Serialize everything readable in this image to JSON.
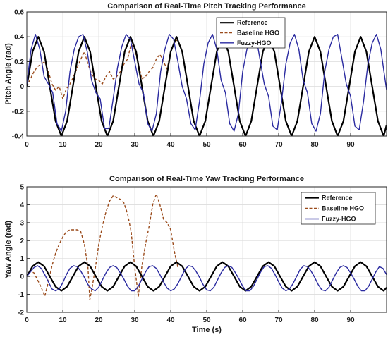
{
  "chart_data": [
    {
      "type": "line",
      "title": "Comparison of Real-Time Pitch Tracking Performance",
      "xlabel": "",
      "ylabel": "Pitch Angle (rad)",
      "xlim": [
        0,
        100
      ],
      "ylim": [
        -0.4,
        0.6
      ],
      "xticks": [
        "0",
        "10",
        "20",
        "30",
        "40",
        "50",
        "60",
        "70",
        "80",
        "90"
      ],
      "yticks": [
        "-0.4",
        "-0.2",
        "0",
        "0.2",
        "0.4",
        "0.6"
      ],
      "grid": true,
      "legend_position": "top-right",
      "series": [
        {
          "name": "Reference",
          "color": "#000000",
          "style": "solid",
          "x": [
            0,
            1.6,
            3.2,
            4.8,
            6.4,
            8,
            9.6,
            11.2,
            12.8,
            14.4,
            16,
            17.6,
            19.2,
            20.8,
            22.4,
            24,
            25.6,
            27.2,
            28.8,
            30.4,
            32,
            33.6,
            35.2,
            36.8,
            38.4,
            40,
            41.6,
            43.2,
            44.8,
            46.4,
            48,
            49.6,
            51.2,
            52.8,
            54.4,
            56,
            57.6,
            59.2,
            60.8,
            62.4,
            64,
            65.6,
            67.2,
            68.8,
            70.4,
            72,
            73.6,
            75.2,
            76.8,
            78.4,
            80,
            81.6,
            83.2,
            84.8,
            86.4,
            88,
            89.6,
            91.2,
            92.8,
            94.4,
            96,
            97.6,
            99.2,
            100
          ],
          "y": [
            0,
            0.28,
            0.4,
            0.28,
            0,
            -0.28,
            -0.4,
            -0.28,
            0,
            0.28,
            0.4,
            0.28,
            0,
            -0.28,
            -0.4,
            -0.28,
            0,
            0.28,
            0.4,
            0.28,
            0,
            -0.28,
            -0.4,
            -0.28,
            0,
            0.28,
            0.4,
            0.28,
            0,
            -0.28,
            -0.4,
            -0.28,
            0,
            0.28,
            0.4,
            0.28,
            0,
            -0.28,
            -0.4,
            -0.28,
            0,
            0.28,
            0.4,
            0.28,
            0,
            -0.28,
            -0.4,
            -0.28,
            0,
            0.28,
            0.4,
            0.28,
            0,
            -0.28,
            -0.4,
            -0.28,
            0,
            0.28,
            0.4,
            0.28,
            0,
            -0.28,
            -0.4,
            -0.31
          ]
        },
        {
          "name": "Baseline HGO",
          "color": "#9a4a1a",
          "style": "dashed",
          "x": [
            0,
            1,
            2,
            3,
            4,
            5,
            6,
            7,
            8,
            9,
            10,
            11,
            12,
            13,
            14,
            15,
            16,
            17,
            18,
            19,
            20,
            21,
            22,
            23,
            24,
            25,
            26,
            27,
            28,
            29,
            30,
            31,
            32,
            33,
            34,
            35,
            36,
            37,
            38,
            39,
            40,
            41,
            42
          ],
          "y": [
            0,
            0.06,
            0.12,
            0.16,
            0.18,
            0.2,
            0.12,
            0.02,
            -0.03,
            0,
            -0.1,
            -0.02,
            0.02,
            0.08,
            0.15,
            0.22,
            0.28,
            0.18,
            0.1,
            0.06,
            0.05,
            0.02,
            0.08,
            0.12,
            0.06,
            0.08,
            0.12,
            0.18,
            0.22,
            0.34,
            0.3,
            0.18,
            0.06,
            0.08,
            0.12,
            0.15,
            0.22,
            0.26,
            0.2,
            0.14,
            0.28,
            0.35,
            0.38
          ]
        },
        {
          "name": "Fuzzy-HGO",
          "color": "#2a2aa0",
          "style": "solid",
          "x": [
            0,
            1.2,
            2.4,
            3.6,
            4.8,
            6,
            7.2,
            8.4,
            9.6,
            10.8,
            12,
            13.2,
            14.4,
            15.6,
            16.8,
            18,
            19.2,
            20.4,
            21.6,
            22.8,
            24,
            25.2,
            26.4,
            27.6,
            28.8,
            30,
            31.2,
            32.4,
            33.6,
            34.8,
            36,
            37.2,
            38.4,
            39.6,
            40.8,
            42,
            43.2,
            44.4,
            45.6,
            46.8,
            48,
            49.2,
            50.4,
            51.6,
            52.8,
            54,
            55.2,
            56.4,
            57.6,
            58.8,
            60,
            61.2,
            62.4,
            63.6,
            64.8,
            66,
            67.2,
            68.4,
            69.6,
            70.8,
            72,
            73.2,
            74.4,
            75.6,
            76.8,
            78,
            79.2,
            80.4,
            81.6,
            82.8,
            84,
            85.2,
            86.4,
            87.6,
            88.8,
            90,
            91.2,
            92.4,
            93.6,
            94.8,
            96,
            97.2,
            98.4,
            99.6,
            100
          ],
          "y": [
            0.02,
            0.3,
            0.42,
            0.3,
            0.08,
            0.02,
            -0.05,
            -0.3,
            -0.36,
            -0.2,
            0.12,
            0.3,
            0.4,
            0.42,
            0.28,
            0.05,
            -0.05,
            -0.1,
            -0.34,
            -0.34,
            -0.1,
            0.15,
            0.32,
            0.42,
            0.38,
            0.2,
            0.02,
            -0.05,
            -0.3,
            -0.36,
            -0.22,
            0.12,
            0.3,
            0.42,
            0.38,
            0.2,
            0,
            -0.1,
            -0.3,
            -0.35,
            -0.12,
            0.18,
            0.35,
            0.42,
            0.3,
            0.05,
            -0.05,
            -0.3,
            -0.36,
            -0.22,
            0.12,
            0.3,
            0.4,
            0.42,
            0.22,
            0.02,
            -0.08,
            -0.32,
            -0.35,
            -0.12,
            0.18,
            0.35,
            0.42,
            0.3,
            0.05,
            -0.05,
            -0.3,
            -0.36,
            -0.22,
            0.12,
            0.3,
            0.4,
            0.42,
            0.22,
            0.02,
            -0.08,
            -0.32,
            -0.35,
            -0.12,
            0.18,
            0.35,
            0.42,
            0.3,
            0.05,
            -0.03
          ]
        }
      ]
    },
    {
      "type": "line",
      "title": "Comparison of Real-Time Yaw Tracking Performance",
      "xlabel": "Time (s)",
      "ylabel": "Yaw Angle (rad)",
      "xlim": [
        0,
        100
      ],
      "ylim": [
        -2,
        5
      ],
      "xticks": [
        "0",
        "10",
        "20",
        "30",
        "40",
        "50",
        "60",
        "70",
        "80",
        "90"
      ],
      "yticks": [
        "-2",
        "-1",
        "0",
        "1",
        "2",
        "3",
        "4",
        "5"
      ],
      "grid": true,
      "legend_position": "top-right",
      "series": [
        {
          "name": "Reference",
          "color": "#000000",
          "style": "solid",
          "x": [
            0,
            1.6,
            3.2,
            4.8,
            6.4,
            8,
            9.6,
            11.2,
            12.8,
            14.4,
            16,
            17.6,
            19.2,
            20.8,
            22.4,
            24,
            25.6,
            27.2,
            28.8,
            30.4,
            32,
            33.6,
            35.2,
            36.8,
            38.4,
            40,
            41.6,
            43.2,
            44.8,
            46.4,
            48,
            49.6,
            51.2,
            52.8,
            54.4,
            56,
            57.6,
            59.2,
            60.8,
            62.4,
            64,
            65.6,
            67.2,
            68.8,
            70.4,
            72,
            73.6,
            75.2,
            76.8,
            78.4,
            80,
            81.6,
            83.2,
            84.8,
            86.4,
            88,
            89.6,
            91.2,
            92.8,
            94.4,
            96,
            97.6,
            99.2,
            100
          ],
          "y": [
            0,
            0.57,
            0.8,
            0.57,
            0,
            -0.57,
            -0.8,
            -0.57,
            0,
            0.57,
            0.8,
            0.57,
            0,
            -0.57,
            -0.8,
            -0.57,
            0,
            0.57,
            0.8,
            0.57,
            0,
            -0.57,
            -0.8,
            -0.57,
            0,
            0.57,
            0.8,
            0.57,
            0,
            -0.57,
            -0.8,
            -0.57,
            0,
            0.57,
            0.8,
            0.57,
            0,
            -0.57,
            -0.8,
            -0.57,
            0,
            0.57,
            0.8,
            0.57,
            0,
            -0.57,
            -0.8,
            -0.57,
            0,
            0.57,
            0.8,
            0.57,
            0,
            -0.57,
            -0.8,
            -0.57,
            0,
            0.57,
            0.8,
            0.57,
            0,
            -0.57,
            -0.8,
            -0.62
          ]
        },
        {
          "name": "Baseline HGO",
          "color": "#9a4a1a",
          "style": "dashed",
          "x": [
            0,
            1,
            2,
            3,
            4,
            5,
            6,
            7,
            8,
            9,
            10,
            11,
            12,
            13,
            14,
            15,
            16,
            17,
            17.5,
            18,
            19,
            20,
            21,
            22,
            23,
            24,
            25,
            26,
            27,
            28,
            29,
            30,
            31,
            32,
            33,
            34,
            35,
            36,
            37,
            38,
            39,
            40,
            41,
            42
          ],
          "y": [
            0,
            0.3,
            0.2,
            -0.2,
            -0.6,
            -1.1,
            -0.3,
            0.6,
            1.3,
            1.8,
            2.2,
            2.5,
            2.6,
            2.6,
            2.6,
            2.5,
            1.8,
            0.5,
            -1.3,
            -0.8,
            0.4,
            1.8,
            2.8,
            3.6,
            4.2,
            4.5,
            4.4,
            4.3,
            4.1,
            3.5,
            2.5,
            0.5,
            -1.1,
            0.6,
            1.8,
            2.8,
            4.0,
            4.6,
            4.0,
            3.2,
            3.0,
            2.6,
            1.4,
            0.5
          ]
        },
        {
          "name": "Fuzzy-HGO",
          "color": "#2a2aa0",
          "style": "solid",
          "x": [
            0,
            1,
            2,
            3,
            4,
            5,
            6,
            7,
            8,
            9,
            10,
            11,
            12,
            13,
            14,
            15,
            16,
            17,
            18,
            19,
            20,
            21,
            22,
            23,
            24,
            25,
            26,
            27,
            28,
            29,
            30,
            31,
            32,
            33,
            34,
            35,
            36,
            37,
            38,
            39,
            40,
            41,
            42,
            43,
            44,
            45,
            46,
            47,
            48,
            49,
            50,
            51,
            52,
            53,
            54,
            55,
            56,
            57,
            58,
            59,
            60,
            61,
            62,
            63,
            64,
            65,
            66,
            67,
            68,
            69,
            70,
            71,
            72,
            73,
            74,
            75,
            76,
            77,
            78,
            79,
            80,
            81,
            82,
            83,
            84,
            85,
            86,
            87,
            88,
            89,
            90,
            91,
            92,
            93,
            94,
            95,
            96,
            97,
            98,
            99,
            100
          ],
          "y": [
            0,
            0.25,
            0.5,
            0.6,
            0.45,
            0.1,
            -0.3,
            -0.7,
            -0.8,
            -0.7,
            -0.35,
            0.1,
            0.45,
            0.6,
            0.55,
            0.3,
            -0.05,
            -0.45,
            -0.7,
            -0.8,
            -0.6,
            -0.2,
            0.2,
            0.5,
            0.6,
            0.5,
            0.2,
            -0.15,
            -0.55,
            -0.8,
            -0.8,
            -0.55,
            -0.15,
            0.25,
            0.55,
            0.6,
            0.45,
            0.1,
            -0.3,
            -0.65,
            -0.8,
            -0.7,
            -0.4,
            0,
            0.4,
            0.6,
            0.55,
            0.3,
            -0.05,
            -0.45,
            -0.75,
            -0.8,
            -0.6,
            -0.2,
            0.2,
            0.5,
            0.6,
            0.5,
            0.2,
            -0.15,
            -0.55,
            -0.8,
            -0.8,
            -0.55,
            -0.15,
            0.25,
            0.55,
            0.6,
            0.45,
            0.1,
            -0.3,
            -0.65,
            -0.8,
            -0.7,
            -0.4,
            0,
            0.4,
            0.6,
            0.55,
            0.3,
            -0.05,
            -0.45,
            -0.75,
            -0.8,
            -0.6,
            -0.2,
            0.2,
            0.5,
            0.6,
            0.5,
            0.2,
            -0.15,
            -0.55,
            -0.8,
            -0.8,
            -0.55,
            -0.15,
            0.25,
            0.55,
            0.45,
            0.1
          ]
        }
      ]
    }
  ]
}
